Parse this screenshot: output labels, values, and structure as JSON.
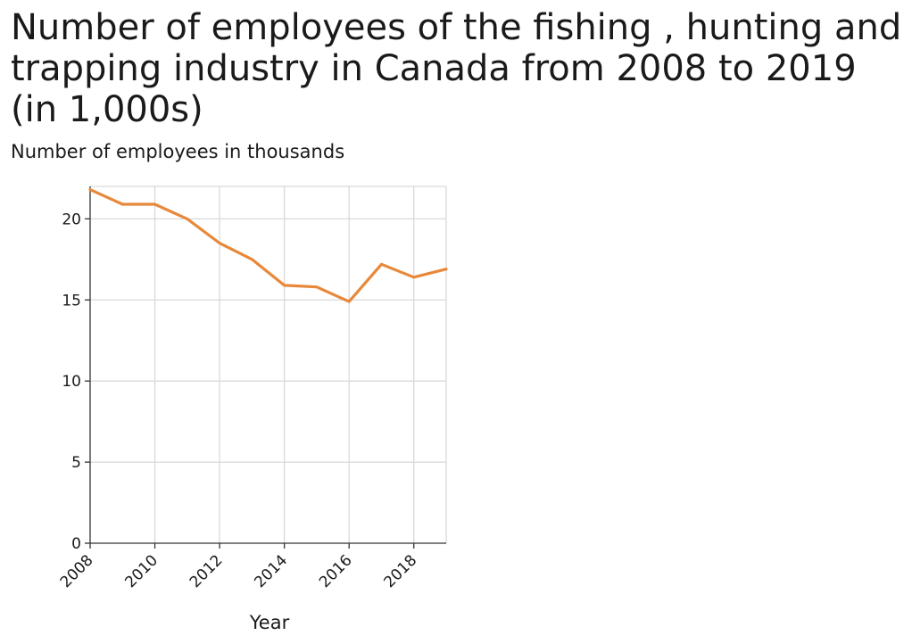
{
  "chart_data": {
    "type": "line",
    "title": "Number of employees of the fishing , hunting and trapping industry in Canada from 2008 to 2019 (in 1,000s)",
    "ylabel": "Number of employees in thousands",
    "xlabel": "Year",
    "x": [
      2008,
      2009,
      2010,
      2011,
      2012,
      2013,
      2014,
      2015,
      2016,
      2017,
      2018,
      2019
    ],
    "series": [
      {
        "values": [
          21.8,
          20.9,
          20.9,
          20.0,
          18.5,
          17.5,
          15.9,
          15.8,
          14.9,
          17.2,
          16.4,
          16.9
        ]
      }
    ],
    "xlim": [
      2008,
      2019
    ],
    "ylim": [
      0,
      22
    ],
    "x_ticks": [
      2008,
      2010,
      2012,
      2014,
      2016,
      2018
    ],
    "y_ticks": [
      0,
      5,
      10,
      15,
      20
    ],
    "grid": true,
    "colors": {
      "line": "#e8883a",
      "grid": "#d9d9d9",
      "axis": "#333333"
    }
  }
}
